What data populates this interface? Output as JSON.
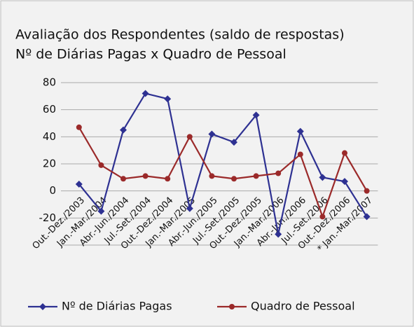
{
  "chart_data": {
    "type": "line",
    "title": "Avaliação dos Respondentes (saldo de respostas)",
    "subtitle": "Nº de Diárias Pagas x Quadro de Pessoal",
    "categories": [
      "Out.-Dez./2003",
      "Jan.-Mar./2004",
      "Abr.-Jun./2004",
      "Jul.-Set./2004",
      "Out.-Dez./2004",
      "Jan.-Mar./2005",
      "Abr.-Jun./2005",
      "Jul.-Set./2005",
      "Out.-Dez./2005",
      "Jan.-Mar./2006",
      "Abr.-Jun./2006",
      "Jul.-Set./2006",
      "Out.-Dez./2006",
      "* Jan.-Mar./2007"
    ],
    "series": [
      {
        "name": "Nº de Diárias Pagas",
        "color": "#2e3192",
        "values": [
          5,
          -15,
          45,
          72,
          68,
          -13,
          42,
          36,
          56,
          -32,
          44,
          10,
          7,
          -19
        ]
      },
      {
        "name": "Quadro de Pessoal",
        "color": "#9b2a2a",
        "values": [
          47,
          19,
          9,
          11,
          9,
          40,
          11,
          9,
          11,
          13,
          27,
          -19,
          28,
          0
        ]
      }
    ],
    "ylim": [
      -40,
      80
    ],
    "yticks": [
      -20,
      0,
      20,
      40,
      60,
      80
    ],
    "grid": true,
    "legend": "bottom"
  }
}
